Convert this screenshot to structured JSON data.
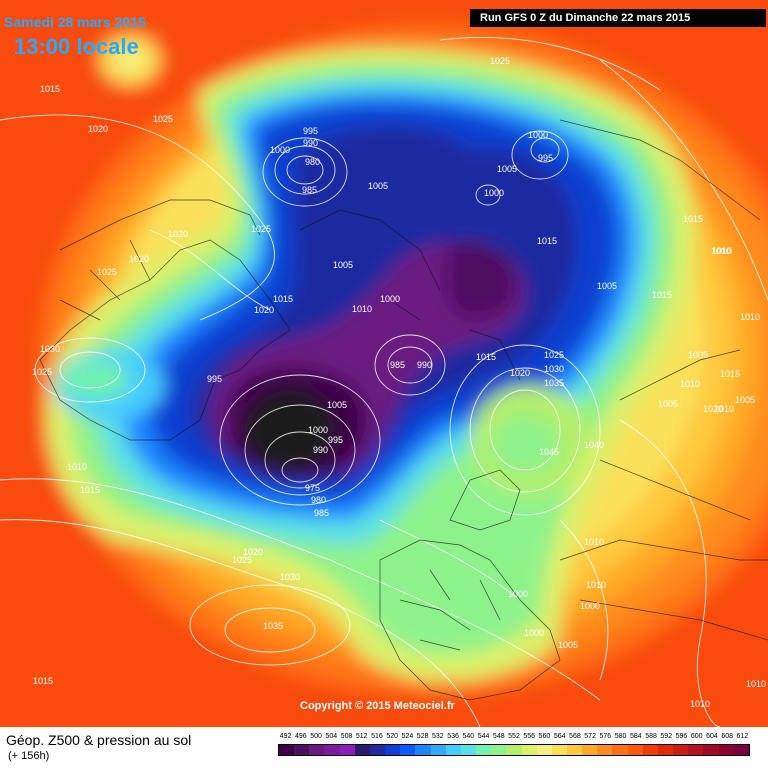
{
  "header": {
    "date": "Samedi 28 mars 2015",
    "local_time": "13:00 locale",
    "run": "Run GFS 0 Z du Dimanche 22 mars 2015"
  },
  "footer": {
    "field_title": "Géop. Z500 & pression au sol",
    "forecast_hour": "(+ 156h)",
    "copyright": "Copyright © 2015 Meteociel.fr"
  },
  "scale": {
    "labels": [
      "492",
      "496",
      "500",
      "504",
      "508",
      "512",
      "516",
      "520",
      "524",
      "528",
      "532",
      "536",
      "540",
      "544",
      "548",
      "552",
      "556",
      "560",
      "564",
      "568",
      "572",
      "576",
      "580",
      "584",
      "588",
      "592",
      "596",
      "600",
      "604",
      "608",
      "612"
    ],
    "colors": [
      "#3c0046",
      "#501060",
      "#6a1a80",
      "#7c1aa0",
      "#8a1eb8",
      "#2a1a6a",
      "#1e2aa0",
      "#0f3fd0",
      "#0a5aff",
      "#1f85ff",
      "#34aaff",
      "#46ccff",
      "#5ae0e6",
      "#6ef2b0",
      "#8ef28a",
      "#b4f06a",
      "#dcf06a",
      "#f6f080",
      "#fae05a",
      "#ffc83c",
      "#ffaa28",
      "#ff8c1e",
      "#ff7214",
      "#ff5a0a",
      "#f03c0a",
      "#e02a0a",
      "#c81e14",
      "#b4141e",
      "#a00a28",
      "#8c0032",
      "#78003c"
    ]
  },
  "isobars": [
    {
      "text": "1025"
    },
    {
      "text": "1015"
    },
    {
      "text": "1025"
    },
    {
      "text": "1020"
    },
    {
      "text": "995"
    },
    {
      "text": "990"
    },
    {
      "text": "1000"
    },
    {
      "text": "980"
    },
    {
      "text": "985"
    },
    {
      "text": "1005"
    },
    {
      "text": "1000"
    },
    {
      "text": "995"
    },
    {
      "text": "1005"
    },
    {
      "text": "1000"
    },
    {
      "text": "1015"
    },
    {
      "text": "1020"
    },
    {
      "text": "1025"
    },
    {
      "text": "1020"
    },
    {
      "text": "1025"
    },
    {
      "text": "1005"
    },
    {
      "text": "1015"
    },
    {
      "text": "1020"
    },
    {
      "text": "1010"
    },
    {
      "text": "1000"
    },
    {
      "text": "1005"
    },
    {
      "text": "1015"
    },
    {
      "text": "1010"
    },
    {
      "text": "1015"
    },
    {
      "text": "1005"
    },
    {
      "text": "1030"
    },
    {
      "text": "1025"
    },
    {
      "text": "995"
    },
    {
      "text": "985"
    },
    {
      "text": "990"
    },
    {
      "text": "1015"
    },
    {
      "text": "1025"
    },
    {
      "text": "1030"
    },
    {
      "text": "1035"
    },
    {
      "text": "1020"
    },
    {
      "text": "1005"
    },
    {
      "text": "1000"
    },
    {
      "text": "995"
    },
    {
      "text": "990"
    },
    {
      "text": "975"
    },
    {
      "text": "980"
    },
    {
      "text": "985"
    },
    {
      "text": "1045"
    },
    {
      "text": "1040"
    },
    {
      "text": "1010"
    },
    {
      "text": "1010"
    },
    {
      "text": "1005"
    },
    {
      "text": "1010"
    },
    {
      "text": "1015"
    },
    {
      "text": "1020"
    },
    {
      "text": "1005"
    },
    {
      "text": "1010"
    },
    {
      "text": "1010"
    },
    {
      "text": "1010"
    },
    {
      "text": "1015"
    },
    {
      "text": "1020"
    },
    {
      "text": "1025"
    },
    {
      "text": "1030"
    },
    {
      "text": "1035"
    },
    {
      "text": "1010"
    },
    {
      "text": "1000"
    },
    {
      "text": "1000"
    },
    {
      "text": "1000"
    },
    {
      "text": "1005"
    },
    {
      "text": "1015"
    },
    {
      "text": "1010"
    },
    {
      "text": "1010"
    }
  ]
}
